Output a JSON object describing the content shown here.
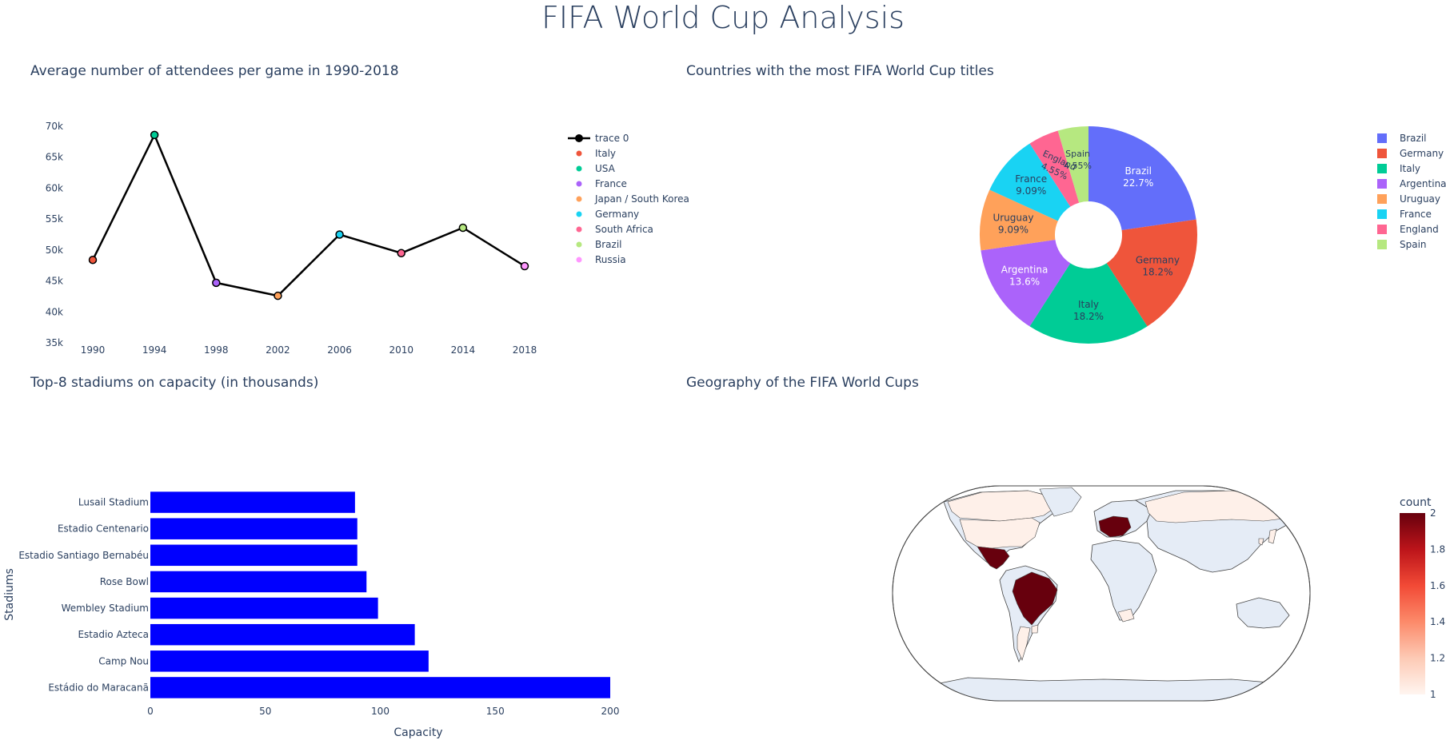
{
  "title": "FIFA World Cup Analysis",
  "colors": {
    "title": "#2a3f5f",
    "line": "#000000",
    "bar": "#0000ff",
    "ocean": "#ffffff",
    "land": "#e5ecf6"
  },
  "chart_data": [
    {
      "type": "line",
      "title": "Average number of attendees per game in 1990-2018",
      "x": [
        1990,
        1994,
        1998,
        2002,
        2006,
        2010,
        2014,
        2018
      ],
      "y": [
        48400,
        68600,
        44700,
        42600,
        52500,
        49500,
        53600,
        47400
      ],
      "ylim": [
        35000,
        70000
      ],
      "yticks": [
        "35k",
        "40k",
        "45k",
        "50k",
        "55k",
        "60k",
        "65k",
        "70k"
      ],
      "ytick_values": [
        35000,
        40000,
        45000,
        50000,
        55000,
        60000,
        65000,
        70000
      ],
      "xticks": [
        "1990",
        "1994",
        "1998",
        "2002",
        "2006",
        "2010",
        "2014",
        "2018"
      ],
      "line_series_name": "trace 0",
      "hosts": [
        "Italy",
        "USA",
        "France",
        "Japan / South Korea",
        "Germany",
        "South Africa",
        "Brazil",
        "Russia"
      ],
      "host_colors": [
        "#EF553B",
        "#00CC96",
        "#AB63FA",
        "#FFA15A",
        "#19D3F3",
        "#FF6692",
        "#B6E880",
        "#FF97FF"
      ],
      "legend": "right"
    },
    {
      "type": "pie",
      "title": "Countries with the most FIFA World Cup titles",
      "hole": true,
      "labels": [
        "Brazil",
        "Germany",
        "Italy",
        "Argentina",
        "Uruguay",
        "France",
        "England",
        "Spain"
      ],
      "values": [
        5,
        4,
        4,
        3,
        2,
        2,
        1,
        1
      ],
      "percent_labels": [
        "22.7%",
        "18.2%",
        "18.2%",
        "13.6%",
        "9.09%",
        "9.09%",
        "4.55%",
        "4.55%"
      ],
      "colors": [
        "#636EFA",
        "#EF553B",
        "#00CC96",
        "#AB63FA",
        "#FFA15A",
        "#19D3F3",
        "#FF6692",
        "#B6E880"
      ],
      "legend": "right"
    },
    {
      "type": "bar",
      "orientation": "horizontal",
      "title": "Top-8 stadiums on capacity (in thousands)",
      "categories": [
        "Estádio do Maracanã",
        "Camp Nou",
        "Estadio Azteca",
        "Wembley Stadium",
        "Rose Bowl",
        "Estadio Santiago Bernabéu",
        "Estadio Centenario",
        "Lusail Stadium"
      ],
      "values": [
        200,
        121,
        115,
        99,
        94,
        90,
        90,
        89
      ],
      "xlabel": "Capacity",
      "ylabel": "Stadiums",
      "xlim": [
        0,
        200
      ],
      "xticks": [
        "0",
        "50",
        "100",
        "150",
        "200"
      ],
      "xtick_values": [
        0,
        50,
        100,
        150,
        200
      ]
    },
    {
      "type": "choropleth",
      "title": "Geography of the FIFA World Cups",
      "colorbar_title": "count",
      "colorbar_ticks": [
        "2",
        "1.8",
        "1.6",
        "1.4",
        "1.2",
        "1"
      ],
      "colorbar_tick_values": [
        2,
        1.8,
        1.6,
        1.4,
        1.2,
        1
      ],
      "color_range": [
        1,
        2
      ],
      "colors_low_high": [
        "#fff5f0",
        "#67000d"
      ]
    }
  ]
}
